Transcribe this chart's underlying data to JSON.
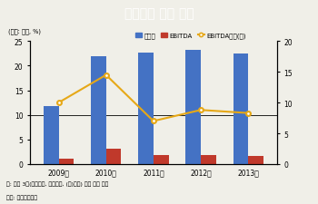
{
  "title": "한진그룹 합산 실적",
  "unit_label": "(단위: 조원, %)",
  "years": [
    "2009년",
    "2010년",
    "2011년",
    "2012년",
    "2013년"
  ],
  "sales": [
    11.8,
    22.0,
    22.6,
    23.3,
    22.4
  ],
  "ebitda": [
    1.1,
    3.2,
    1.9,
    1.9,
    1.7
  ],
  "ebitda_margin": [
    10.0,
    14.5,
    7.0,
    8.8,
    8.3
  ],
  "bar_color_sales": "#4472c4",
  "bar_color_ebitda": "#c0392b",
  "line_color": "#e6a817",
  "title_bg": "#b5a540",
  "title_fg": "#ffffff",
  "footer_line_color": "#b5a540",
  "note1": "주: 주력 3사(대한항공, 한진해운, (주)한진) 단순 합산 기준",
  "note2": "자료: 한국기업평가",
  "legend_sales": "매출액",
  "legend_ebitda": "EBITDA",
  "legend_margin": "EBITDA마진(우)",
  "ylim_left": [
    0,
    25
  ],
  "ylim_right": [
    0,
    20
  ],
  "yticks_left": [
    0,
    5,
    10,
    15,
    20,
    25
  ],
  "yticks_right": [
    0,
    5,
    10,
    15,
    20
  ],
  "background_color": "#f0efe8"
}
